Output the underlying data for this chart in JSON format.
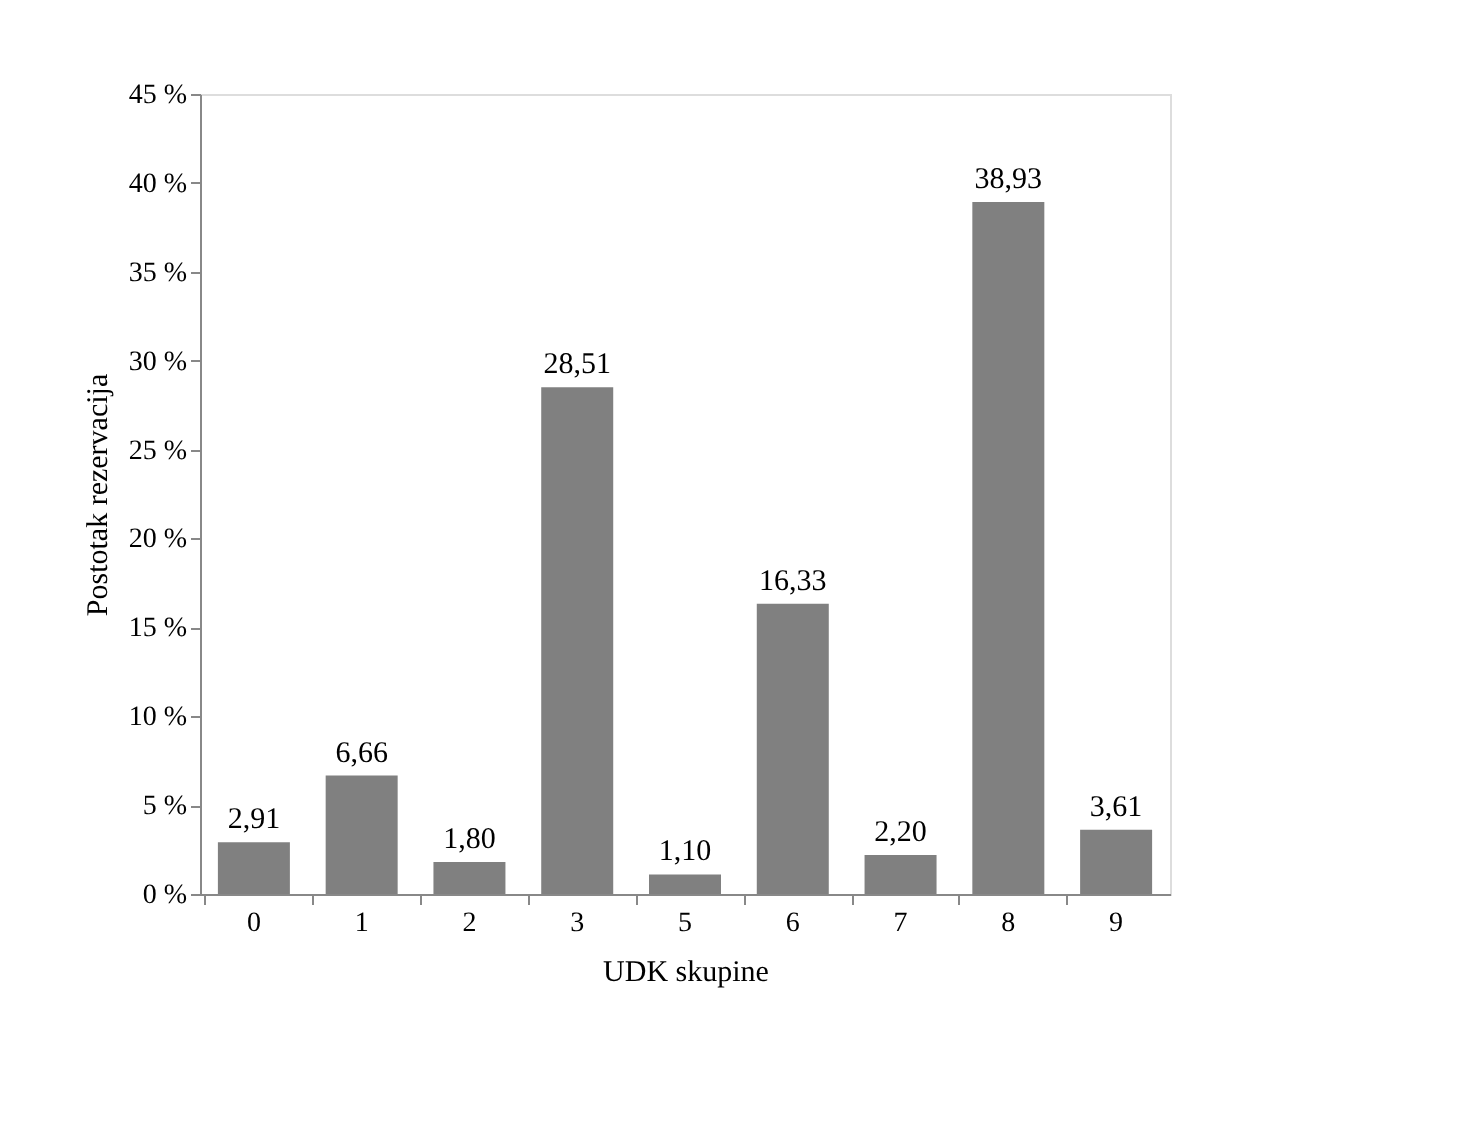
{
  "chart_data": {
    "type": "bar",
    "xlabel": "UDK skupine",
    "ylabel": "Postotak rezervacija",
    "categories": [
      "0",
      "1",
      "2",
      "3",
      "5",
      "6",
      "7",
      "8",
      "9"
    ],
    "values": [
      2.91,
      6.66,
      1.8,
      28.51,
      1.1,
      16.33,
      2.2,
      38.93,
      3.61
    ],
    "value_labels": [
      "2,91",
      "6,66",
      "1,80",
      "28,51",
      "1,10",
      "16,33",
      "2,20",
      "38,93",
      "3,61"
    ],
    "color": "#808080",
    "ylim": [
      0,
      45
    ],
    "yticks": [
      {
        "value": 0,
        "label": "0 %"
      },
      {
        "value": 5,
        "label": "5 %"
      },
      {
        "value": 10,
        "label": "10 %"
      },
      {
        "value": 15,
        "label": "15 %"
      },
      {
        "value": 20,
        "label": "20 %"
      },
      {
        "value": 25,
        "label": "25 %"
      },
      {
        "value": 30,
        "label": "30 %"
      },
      {
        "value": 35,
        "label": "35 %"
      },
      {
        "value": 40,
        "label": "40 %"
      },
      {
        "value": 45,
        "label": "45 %"
      }
    ],
    "grid": false
  }
}
